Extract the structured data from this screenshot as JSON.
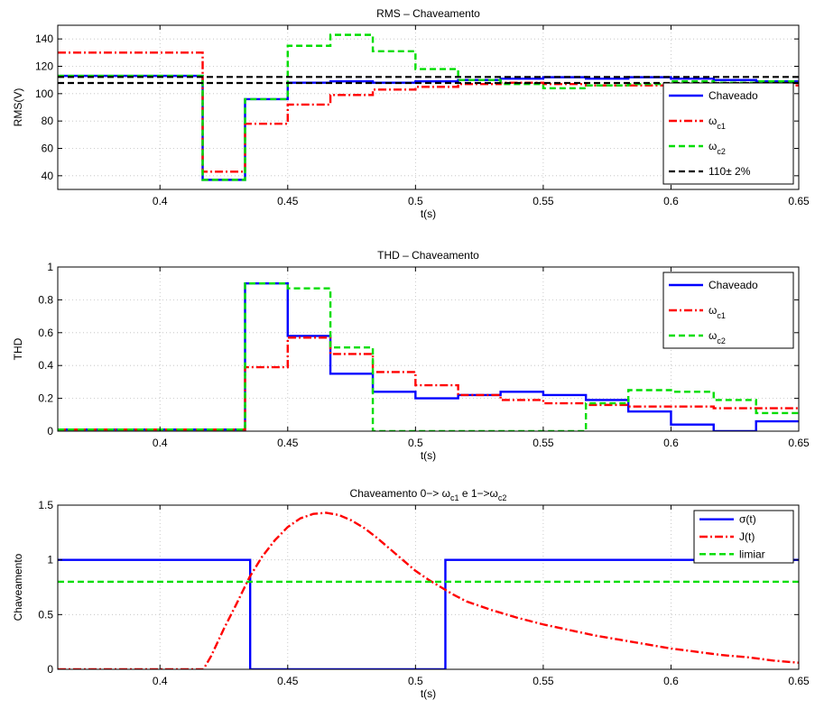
{
  "chart_data": [
    {
      "type": "line",
      "title": "RMS – Chaveamento",
      "xlabel": "t(s)",
      "ylabel": "RMS(V)",
      "xlim": [
        0.36,
        0.65
      ],
      "ylim": [
        30,
        150
      ],
      "xticks": [
        0.4,
        0.45,
        0.5,
        0.55,
        0.6,
        0.65
      ],
      "xtick_labels": [
        "0.4",
        "0.45",
        "0.5",
        "0.55",
        "0.6",
        "0.65"
      ],
      "yticks": [
        40,
        60,
        80,
        100,
        120,
        140
      ],
      "ytick_labels": [
        "40",
        "60",
        "80",
        "100",
        "120",
        "140"
      ],
      "grid": true,
      "legend": "lower-right",
      "series": [
        {
          "name": "Chaveado",
          "color": "#0000ff",
          "style": "solid",
          "x": [
            0.36,
            0.4167,
            0.4167,
            0.4333,
            0.4333,
            0.45,
            0.45,
            0.4667,
            0.4667,
            0.4833,
            0.4833,
            0.5,
            0.5,
            0.5167,
            0.5167,
            0.5333,
            0.5333,
            0.55,
            0.55,
            0.5667,
            0.5667,
            0.5833,
            0.5833,
            0.6,
            0.6,
            0.6167,
            0.6167,
            0.6333,
            0.6333,
            0.65
          ],
          "y": [
            113,
            113,
            37,
            37,
            96,
            96,
            108,
            108,
            109,
            109,
            108,
            108,
            109,
            109,
            110,
            110,
            111,
            111,
            112,
            112,
            111,
            111,
            112,
            112,
            111,
            111,
            110,
            110,
            109,
            109
          ]
        },
        {
          "name": "ω_c1",
          "name_base": "ω",
          "name_sub": "c1",
          "color": "#ff0000",
          "style": "dashdot",
          "x": [
            0.36,
            0.4167,
            0.4167,
            0.4333,
            0.4333,
            0.45,
            0.45,
            0.4667,
            0.4667,
            0.4833,
            0.4833,
            0.5,
            0.5,
            0.5167,
            0.5167,
            0.5333,
            0.5333,
            0.55,
            0.55,
            0.5667,
            0.5667,
            0.5833,
            0.5833,
            0.6,
            0.6,
            0.6167,
            0.6167,
            0.6333,
            0.6333,
            0.65
          ],
          "y": [
            130,
            130,
            43,
            43,
            78,
            78,
            92,
            92,
            99,
            99,
            103,
            103,
            105,
            105,
            107,
            107,
            108,
            108,
            107,
            107,
            106,
            106,
            106,
            106,
            107,
            107,
            106,
            106,
            106,
            106
          ]
        },
        {
          "name": "ω_c2",
          "name_base": "ω",
          "name_sub": "c2",
          "color": "#00dd00",
          "style": "dashed",
          "x": [
            0.36,
            0.4167,
            0.4167,
            0.4333,
            0.4333,
            0.45,
            0.45,
            0.4667,
            0.4667,
            0.4833,
            0.4833,
            0.5,
            0.5,
            0.5167,
            0.5167,
            0.5333,
            0.5333,
            0.55,
            0.55,
            0.5667,
            0.5667,
            0.5833,
            0.5833,
            0.6,
            0.6,
            0.6167,
            0.6167,
            0.6333,
            0.6333,
            0.65
          ],
          "y": [
            113,
            113,
            37,
            37,
            96,
            96,
            135,
            135,
            143,
            143,
            131,
            131,
            118,
            118,
            110,
            110,
            107,
            107,
            104,
            104,
            106,
            106,
            107,
            107,
            109,
            109,
            108,
            108,
            109,
            109
          ]
        },
        {
          "name": "110± 2%",
          "color": "#000000",
          "style": "dashed",
          "width": 2.2,
          "x": [
            0.36,
            0.65
          ],
          "y": [
            112.2,
            112.2
          ]
        },
        {
          "name": "",
          "legend": false,
          "color": "#000000",
          "style": "dashed",
          "width": 2.2,
          "x": [
            0.36,
            0.65
          ],
          "y": [
            107.8,
            107.8
          ]
        }
      ]
    },
    {
      "type": "line",
      "title": "THD – Chaveamento",
      "xlabel": "t(s)",
      "ylabel": "THD",
      "xlim": [
        0.36,
        0.65
      ],
      "ylim": [
        0,
        1
      ],
      "xticks": [
        0.4,
        0.45,
        0.5,
        0.55,
        0.6,
        0.65
      ],
      "xtick_labels": [
        "0.4",
        "0.45",
        "0.5",
        "0.55",
        "0.6",
        "0.65"
      ],
      "yticks": [
        0,
        0.2,
        0.4,
        0.6,
        0.8,
        1
      ],
      "ytick_labels": [
        "0",
        "0.2",
        "0.4",
        "0.6",
        "0.8",
        "1"
      ],
      "grid": true,
      "legend": "top-right",
      "series": [
        {
          "name": "Chaveado",
          "color": "#0000ff",
          "style": "solid",
          "x": [
            0.36,
            0.4333,
            0.4333,
            0.45,
            0.45,
            0.4667,
            0.4667,
            0.4833,
            0.4833,
            0.5,
            0.5,
            0.5167,
            0.5167,
            0.5333,
            0.5333,
            0.55,
            0.55,
            0.5667,
            0.5667,
            0.5833,
            0.5833,
            0.6,
            0.6,
            0.6167,
            0.6167,
            0.6333,
            0.6333,
            0.65
          ],
          "y": [
            0.01,
            0.01,
            0.9,
            0.9,
            0.58,
            0.58,
            0.35,
            0.35,
            0.24,
            0.24,
            0.2,
            0.2,
            0.22,
            0.22,
            0.24,
            0.24,
            0.22,
            0.22,
            0.19,
            0.19,
            0.12,
            0.12,
            0.04,
            0.04,
            0.0,
            0.0,
            0.06,
            0.06
          ]
        },
        {
          "name": "ω_c1",
          "name_base": "ω",
          "name_sub": "c1",
          "color": "#ff0000",
          "style": "dashdot",
          "x": [
            0.36,
            0.4333,
            0.4333,
            0.45,
            0.45,
            0.4667,
            0.4667,
            0.4833,
            0.4833,
            0.5,
            0.5,
            0.5167,
            0.5167,
            0.5333,
            0.5333,
            0.55,
            0.55,
            0.5667,
            0.5667,
            0.5833,
            0.5833,
            0.6,
            0.6,
            0.6167,
            0.6167,
            0.6333,
            0.6333,
            0.65
          ],
          "y": [
            0.01,
            0.01,
            0.39,
            0.39,
            0.57,
            0.57,
            0.47,
            0.47,
            0.36,
            0.36,
            0.28,
            0.28,
            0.22,
            0.22,
            0.19,
            0.19,
            0.17,
            0.17,
            0.16,
            0.16,
            0.15,
            0.15,
            0.15,
            0.15,
            0.14,
            0.14,
            0.14,
            0.14
          ]
        },
        {
          "name": "ω_c2",
          "name_base": "ω",
          "name_sub": "c2",
          "color": "#00dd00",
          "style": "dashed",
          "x": [
            0.36,
            0.4333,
            0.4333,
            0.45,
            0.45,
            0.4667,
            0.4667,
            0.4833,
            0.4833,
            0.5,
            0.5,
            0.5167,
            0.5167,
            0.5333,
            0.5333,
            0.55,
            0.55,
            0.5667,
            0.5667,
            0.5833,
            0.5833,
            0.6,
            0.6,
            0.6167,
            0.6167,
            0.6333,
            0.6333,
            0.65
          ],
          "y": [
            0.01,
            0.01,
            0.9,
            0.9,
            0.87,
            0.87,
            0.51,
            0.51,
            0.0,
            0.0,
            0.0,
            0.0,
            0.0,
            0.0,
            0.0,
            0.0,
            0.0,
            0.0,
            0.17,
            0.17,
            0.25,
            0.25,
            0.24,
            0.24,
            0.19,
            0.19,
            0.11,
            0.11
          ]
        }
      ]
    },
    {
      "type": "line",
      "title": "Chaveamento 0−> ω_c1 e 1−>ω_c2",
      "title_parts": [
        {
          "text": "Chaveamento 0−> ω"
        },
        {
          "text": "c1",
          "sub": true
        },
        {
          "text": " e 1−>ω"
        },
        {
          "text": "c2",
          "sub": true
        }
      ],
      "xlabel": "t(s)",
      "ylabel": "Chaveamento",
      "xlim": [
        0.36,
        0.65
      ],
      "ylim": [
        0,
        1.5
      ],
      "xticks": [
        0.4,
        0.45,
        0.5,
        0.55,
        0.6,
        0.65
      ],
      "xtick_labels": [
        "0.4",
        "0.45",
        "0.5",
        "0.55",
        "0.6",
        "0.65"
      ],
      "yticks": [
        0,
        0.5,
        1,
        1.5
      ],
      "ytick_labels": [
        "0",
        "0.5",
        "1",
        "1.5"
      ],
      "grid": true,
      "legend": "top-right",
      "series": [
        {
          "name": "σ(t)",
          "color": "#0000ff",
          "style": "solid",
          "x": [
            0.36,
            0.4353,
            0.4353,
            0.5117,
            0.5117,
            0.65
          ],
          "y": [
            1,
            1,
            0,
            0,
            1,
            1
          ]
        },
        {
          "name": "J(t)",
          "color": "#ff0000",
          "style": "dashdot",
          "x": [
            0.36,
            0.417,
            0.42,
            0.425,
            0.43,
            0.435,
            0.44,
            0.445,
            0.45,
            0.455,
            0.46,
            0.465,
            0.47,
            0.475,
            0.48,
            0.485,
            0.49,
            0.495,
            0.5,
            0.505,
            0.51,
            0.515,
            0.52,
            0.53,
            0.54,
            0.55,
            0.56,
            0.57,
            0.58,
            0.59,
            0.6,
            0.61,
            0.62,
            0.63,
            0.64,
            0.65
          ],
          "y": [
            0,
            0,
            0.12,
            0.37,
            0.6,
            0.84,
            1.03,
            1.18,
            1.3,
            1.38,
            1.42,
            1.43,
            1.41,
            1.36,
            1.29,
            1.2,
            1.1,
            1.0,
            0.9,
            0.82,
            0.75,
            0.68,
            0.62,
            0.54,
            0.47,
            0.41,
            0.36,
            0.31,
            0.27,
            0.23,
            0.19,
            0.16,
            0.13,
            0.11,
            0.08,
            0.06
          ]
        },
        {
          "name": "limiar",
          "color": "#00dd00",
          "style": "dashed",
          "x": [
            0.36,
            0.65
          ],
          "y": [
            0.8,
            0.8
          ]
        }
      ]
    }
  ]
}
